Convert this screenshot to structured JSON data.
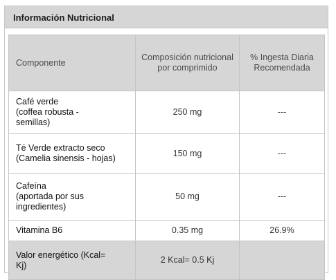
{
  "title": "Información Nutricional",
  "header": {
    "component": "Componente",
    "composition": "Composición nutricional por comprimido",
    "ingesta": "% Ingesta Diaria Recomendada"
  },
  "rows": [
    {
      "component_line1": "Café verde",
      "component_line2": "(coffea robusta -",
      "component_line3": "semillas)",
      "amount": "250 mg",
      "percent": "---"
    },
    {
      "component_line1": "Té Verde extracto seco",
      "component_line2": "(Camelia sinensis - hojas)",
      "amount": "150 mg",
      "percent": "---"
    },
    {
      "component_line1": "Cafeína",
      "component_line2": "(aportada por sus",
      "component_line3": "ingredientes)",
      "amount": "50 mg",
      "percent": "---"
    },
    {
      "component_line1": "Vitamina B6",
      "amount": "0.35 mg",
      "percent": "26.9%"
    },
    {
      "component_line1": "Valor energético (Kcal=",
      "component_line2": "Kj)",
      "amount": "2 Kcal= 0.5 Kj",
      "percent": ""
    }
  ]
}
